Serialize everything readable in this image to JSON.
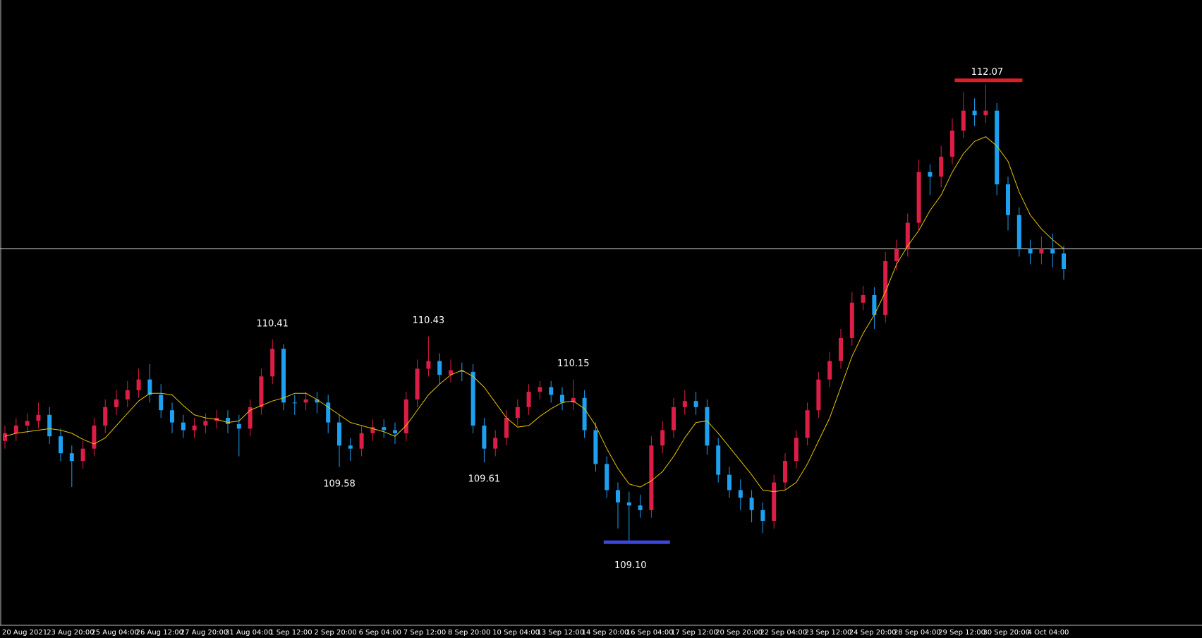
{
  "chart_data": {
    "type": "candlestick",
    "categories": [
      "20 Aug 2021",
      null,
      null,
      null,
      "23 Aug 20:00",
      null,
      null,
      null,
      "25 Aug 04:00",
      null,
      null,
      null,
      "26 Aug 12:00",
      null,
      null,
      null,
      "27 Aug 20:00",
      null,
      null,
      null,
      "31 Aug 04:00",
      null,
      null,
      null,
      "1 Sep 12:00",
      null,
      null,
      null,
      "2 Sep 20:00",
      null,
      null,
      null,
      "6 Sep 04:00",
      null,
      null,
      null,
      "7 Sep 12:00",
      null,
      null,
      null,
      "8 Sep 20:00",
      null,
      null,
      null,
      "10 Sep 04:00",
      null,
      null,
      null,
      "13 Sep 12:00",
      null,
      null,
      null,
      "14 Sep 20:00",
      null,
      null,
      null,
      "16 Sep 04:00",
      null,
      null,
      null,
      "17 Sep 12:00",
      null,
      null,
      null,
      "20 Sep 20:00",
      null,
      null,
      null,
      "22 Sep 04:00",
      null,
      null,
      null,
      "23 Sep 12:00",
      null,
      null,
      null,
      "24 Sep 20:00",
      null,
      null,
      null,
      "28 Sep 04:00",
      null,
      null,
      null,
      "29 Sep 12:00",
      null,
      null,
      null,
      "30 Sep 20:00",
      null,
      null,
      null,
      "4 Oct 04:00",
      null,
      null,
      null
    ],
    "open": [
      109.75,
      109.8,
      109.85,
      109.88,
      109.92,
      109.78,
      109.67,
      109.62,
      109.7,
      109.85,
      109.97,
      110.02,
      110.08,
      110.15,
      110.05,
      109.95,
      109.87,
      109.82,
      109.85,
      109.88,
      109.9,
      109.86,
      109.83,
      109.97,
      110.17,
      110.35,
      110.0,
      110.0,
      110.02,
      110.0,
      109.87,
      109.72,
      109.7,
      109.8,
      109.84,
      109.82,
      109.8,
      110.02,
      110.22,
      110.27,
      110.18,
      110.21,
      110.2,
      109.85,
      109.7,
      109.77,
      109.9,
      109.97,
      110.07,
      110.1,
      110.05,
      110.0,
      110.03,
      109.82,
      109.6,
      109.43,
      109.35,
      109.33,
      109.3,
      109.72,
      109.82,
      109.97,
      110.01,
      109.97,
      109.72,
      109.53,
      109.43,
      109.38,
      109.3,
      109.23,
      109.48,
      109.62,
      109.77,
      109.95,
      110.15,
      110.27,
      110.42,
      110.65,
      110.7,
      110.57,
      110.92,
      111.0,
      111.17,
      111.5,
      111.47,
      111.6,
      111.77,
      111.9,
      111.87,
      111.9,
      111.42,
      111.22,
      111.0,
      110.97,
      111.0,
      110.97
    ],
    "high": [
      109.85,
      109.9,
      109.93,
      110.0,
      109.97,
      109.83,
      109.72,
      109.75,
      109.9,
      110.02,
      110.08,
      110.14,
      110.22,
      110.25,
      110.12,
      110.0,
      109.92,
      109.9,
      109.93,
      109.95,
      109.95,
      109.92,
      110.02,
      110.22,
      110.41,
      110.38,
      110.05,
      110.07,
      110.07,
      110.05,
      109.92,
      109.77,
      109.85,
      109.89,
      109.89,
      109.87,
      110.07,
      110.28,
      110.43,
      110.32,
      110.28,
      110.26,
      110.25,
      109.9,
      109.82,
      109.95,
      110.02,
      110.12,
      110.14,
      110.14,
      110.1,
      110.15,
      110.08,
      109.87,
      109.65,
      109.48,
      109.42,
      109.4,
      109.78,
      109.88,
      110.03,
      110.08,
      110.07,
      110.02,
      109.77,
      109.58,
      109.5,
      109.43,
      109.35,
      109.53,
      109.67,
      109.82,
      110.0,
      110.2,
      110.33,
      110.48,
      110.72,
      110.76,
      110.75,
      110.98,
      111.06,
      111.23,
      111.58,
      111.55,
      111.67,
      111.85,
      112.02,
      111.98,
      112.07,
      111.95,
      111.47,
      111.27,
      111.06,
      111.08,
      111.1,
      111.02
    ],
    "low": [
      109.7,
      109.75,
      109.8,
      109.83,
      109.73,
      109.62,
      109.45,
      109.57,
      109.65,
      109.8,
      109.92,
      109.97,
      110.03,
      110.0,
      109.9,
      109.8,
      109.77,
      109.77,
      109.8,
      109.83,
      109.8,
      109.65,
      109.78,
      109.92,
      110.12,
      109.95,
      109.92,
      109.95,
      109.93,
      109.8,
      109.58,
      109.62,
      109.65,
      109.75,
      109.77,
      109.73,
      109.75,
      109.97,
      110.17,
      110.12,
      110.13,
      110.14,
      109.8,
      109.61,
      109.65,
      109.72,
      109.85,
      109.92,
      110.02,
      110.0,
      109.95,
      109.95,
      109.77,
      109.55,
      109.38,
      109.18,
      109.1,
      109.25,
      109.25,
      109.67,
      109.77,
      109.92,
      109.92,
      109.66,
      109.48,
      109.38,
      109.3,
      109.22,
      109.15,
      109.18,
      109.43,
      109.57,
      109.72,
      109.9,
      110.1,
      110.22,
      110.37,
      110.6,
      110.48,
      110.52,
      110.86,
      110.95,
      111.12,
      111.35,
      111.4,
      111.55,
      111.72,
      111.8,
      111.82,
      111.35,
      111.12,
      110.95,
      110.9,
      110.9,
      110.88,
      110.8
    ],
    "close": [
      109.8,
      109.85,
      109.88,
      109.92,
      109.78,
      109.67,
      109.62,
      109.7,
      109.85,
      109.97,
      110.02,
      110.08,
      110.15,
      110.05,
      109.95,
      109.87,
      109.82,
      109.85,
      109.88,
      109.9,
      109.86,
      109.83,
      109.97,
      110.17,
      110.35,
      110.0,
      110.0,
      110.02,
      110.0,
      109.87,
      109.72,
      109.7,
      109.8,
      109.84,
      109.82,
      109.8,
      110.02,
      110.22,
      110.27,
      110.18,
      110.21,
      110.2,
      109.85,
      109.7,
      109.77,
      109.9,
      109.97,
      110.07,
      110.1,
      110.05,
      110.0,
      110.03,
      109.82,
      109.6,
      109.43,
      109.35,
      109.33,
      109.3,
      109.72,
      109.82,
      109.97,
      110.01,
      109.97,
      109.72,
      109.53,
      109.43,
      109.38,
      109.3,
      109.23,
      109.48,
      109.62,
      109.77,
      109.95,
      110.15,
      110.27,
      110.42,
      110.65,
      110.7,
      110.57,
      110.92,
      111.0,
      111.17,
      111.5,
      111.47,
      111.6,
      111.77,
      111.9,
      111.87,
      111.9,
      111.42,
      111.22,
      111.0,
      110.97,
      111.0,
      110.97,
      110.87
    ],
    "up_color": "#dc1e46",
    "down_color": "#1ea0f0",
    "ma_color": "#e6c300",
    "ma_values": [
      109.78,
      109.8,
      109.81,
      109.82,
      109.83,
      109.82,
      109.8,
      109.76,
      109.73,
      109.77,
      109.85,
      109.93,
      110.01,
      110.06,
      110.06,
      110.05,
      109.98,
      109.92,
      109.9,
      109.89,
      109.87,
      109.88,
      109.95,
      109.98,
      110.01,
      110.03,
      110.06,
      110.06,
      110.02,
      109.97,
      109.92,
      109.87,
      109.85,
      109.83,
      109.81,
      109.78,
      109.85,
      109.95,
      110.05,
      110.12,
      110.18,
      110.21,
      110.17,
      110.1,
      110.0,
      109.9,
      109.84,
      109.85,
      109.91,
      109.96,
      110.0,
      110.01,
      109.96,
      109.85,
      109.7,
      109.57,
      109.47,
      109.45,
      109.49,
      109.55,
      109.65,
      109.77,
      109.87,
      109.88,
      109.8,
      109.71,
      109.62,
      109.53,
      109.43,
      109.42,
      109.43,
      109.48,
      109.6,
      109.75,
      109.9,
      110.1,
      110.3,
      110.45,
      110.57,
      110.72,
      110.9,
      111.02,
      111.12,
      111.25,
      111.35,
      111.5,
      111.62,
      111.7,
      111.73,
      111.67,
      111.57,
      111.37,
      111.22,
      111.13,
      111.06,
      111.0
    ],
    "price_line": 111.0,
    "peaks": [
      110.41,
      110.43,
      110.15
    ],
    "troughs": [
      109.58,
      109.61
    ],
    "max": 112.07,
    "min": {
      "value": 109.1,
      "label": "109.10"
    },
    "max_color": "#dc1e28",
    "min_color": "#3c46dc",
    "ylim": [
      108.55,
      112.62
    ]
  }
}
